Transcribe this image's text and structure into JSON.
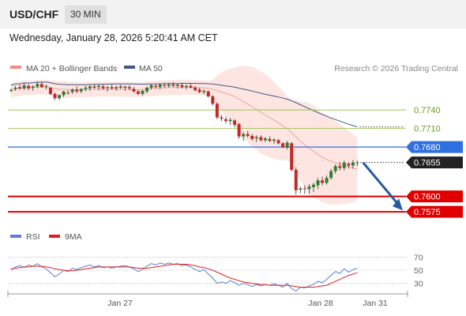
{
  "header": {
    "symbol": "USD/CHF",
    "timeframe": "30 MIN"
  },
  "datetime": "Wednesday, January 28, 2026 5:20:41 AM CET",
  "legend": {
    "bollinger": {
      "label": "MA 20 + Bollinger Bands",
      "color": "#f28b82"
    },
    "ma50": {
      "label": "MA 50",
      "color": "#3d5a8a"
    },
    "credit": "Research © 2026 Trading Central"
  },
  "rsi_legend": {
    "rsi": {
      "label": "RSI",
      "color": "#5b7fd6"
    },
    "ma9": {
      "label": "9MA",
      "color": "#e02020"
    }
  },
  "chart_data": {
    "type": "candlestick",
    "price_range": [
      0.7565,
      0.7785
    ],
    "levels": [
      {
        "label": "0.7740",
        "value": 0.774,
        "kind": "resistance",
        "color": "#8fbf3f",
        "label_style": "text"
      },
      {
        "label": "0.7710",
        "value": 0.771,
        "kind": "resistance",
        "color": "#8fbf3f",
        "label_style": "text"
      },
      {
        "label": "0.7680",
        "value": 0.768,
        "kind": "pivot",
        "color": "#2f6fde",
        "label_style": "box"
      },
      {
        "label": "0.7655",
        "value": 0.7655,
        "kind": "last-price",
        "color": "#222222",
        "label_style": "box"
      },
      {
        "label": "0.7600",
        "value": 0.76,
        "kind": "support",
        "color": "#e00000",
        "label_style": "box"
      },
      {
        "label": "0.7575",
        "value": 0.7575,
        "kind": "support",
        "color": "#e00000",
        "label_style": "box"
      }
    ],
    "x_ticks": [
      "Jan 27",
      "Jan 28",
      "Jan 31"
    ],
    "candles": [
      [
        0.7772,
        0.7775,
        0.7769,
        0.7772
      ],
      [
        0.7774,
        0.7779,
        0.7771,
        0.7776
      ],
      [
        0.7777,
        0.7781,
        0.7773,
        0.7775
      ],
      [
        0.7775,
        0.7783,
        0.7772,
        0.778
      ],
      [
        0.7779,
        0.7782,
        0.7772,
        0.7775
      ],
      [
        0.7776,
        0.778,
        0.7771,
        0.7778
      ],
      [
        0.7778,
        0.7786,
        0.7775,
        0.7782
      ],
      [
        0.7782,
        0.7786,
        0.7776,
        0.7777
      ],
      [
        0.7778,
        0.7781,
        0.7773,
        0.7779
      ],
      [
        0.7776,
        0.7777,
        0.7764,
        0.7766
      ],
      [
        0.7766,
        0.7768,
        0.7756,
        0.7759
      ],
      [
        0.7759,
        0.7765,
        0.7756,
        0.7764
      ],
      [
        0.7764,
        0.7771,
        0.7761,
        0.777
      ],
      [
        0.7768,
        0.7772,
        0.7765,
        0.7767
      ],
      [
        0.7769,
        0.7775,
        0.7766,
        0.7773
      ],
      [
        0.7773,
        0.7778,
        0.7767,
        0.777
      ],
      [
        0.777,
        0.7775,
        0.7767,
        0.7774
      ],
      [
        0.7774,
        0.7779,
        0.777,
        0.7776
      ],
      [
        0.7775,
        0.778,
        0.7771,
        0.7778
      ],
      [
        0.7778,
        0.7782,
        0.7774,
        0.7776
      ],
      [
        0.7777,
        0.7781,
        0.7772,
        0.7779
      ],
      [
        0.7778,
        0.7781,
        0.7773,
        0.7775
      ],
      [
        0.7776,
        0.7779,
        0.777,
        0.7777
      ],
      [
        0.7777,
        0.7781,
        0.7773,
        0.7775
      ],
      [
        0.7775,
        0.7779,
        0.7771,
        0.7777
      ],
      [
        0.7778,
        0.7781,
        0.7774,
        0.7776
      ],
      [
        0.7776,
        0.7779,
        0.7771,
        0.7778
      ],
      [
        0.7777,
        0.778,
        0.7772,
        0.7775
      ],
      [
        0.7774,
        0.7777,
        0.7768,
        0.777
      ],
      [
        0.777,
        0.7772,
        0.7764,
        0.7766
      ],
      [
        0.7766,
        0.7772,
        0.7763,
        0.7771
      ],
      [
        0.777,
        0.7778,
        0.7767,
        0.7776
      ],
      [
        0.7776,
        0.7782,
        0.7773,
        0.778
      ],
      [
        0.7779,
        0.7782,
        0.7775,
        0.7777
      ],
      [
        0.7777,
        0.7783,
        0.7774,
        0.7781
      ],
      [
        0.778,
        0.7784,
        0.7776,
        0.7779
      ],
      [
        0.7779,
        0.7784,
        0.7776,
        0.7781
      ],
      [
        0.7781,
        0.7785,
        0.7777,
        0.7779
      ],
      [
        0.7779,
        0.7783,
        0.7775,
        0.7781
      ],
      [
        0.778,
        0.7784,
        0.7775,
        0.7777
      ],
      [
        0.7777,
        0.7781,
        0.7773,
        0.7779
      ],
      [
        0.7779,
        0.7783,
        0.7775,
        0.7776
      ],
      [
        0.7776,
        0.7779,
        0.777,
        0.7772
      ],
      [
        0.7773,
        0.7776,
        0.7767,
        0.7769
      ],
      [
        0.7769,
        0.7773,
        0.7765,
        0.7771
      ],
      [
        0.777,
        0.7772,
        0.776,
        0.7762
      ],
      [
        0.7762,
        0.7764,
        0.7747,
        0.775
      ],
      [
        0.775,
        0.7752,
        0.7725,
        0.7728
      ],
      [
        0.7728,
        0.7732,
        0.7722,
        0.7726
      ],
      [
        0.7725,
        0.7729,
        0.7718,
        0.7722
      ],
      [
        0.7722,
        0.7727,
        0.7716,
        0.7724
      ],
      [
        0.7723,
        0.7725,
        0.7712,
        0.7716
      ],
      [
        0.7717,
        0.7719,
        0.7693,
        0.7697
      ],
      [
        0.7697,
        0.7704,
        0.769,
        0.7701
      ],
      [
        0.7701,
        0.7706,
        0.7695,
        0.7698
      ],
      [
        0.7698,
        0.7701,
        0.769,
        0.7693
      ],
      [
        0.7694,
        0.7699,
        0.7688,
        0.7696
      ],
      [
        0.7696,
        0.7699,
        0.7689,
        0.7691
      ],
      [
        0.7691,
        0.7696,
        0.7688,
        0.7694
      ],
      [
        0.7693,
        0.7697,
        0.7688,
        0.769
      ],
      [
        0.769,
        0.7694,
        0.7685,
        0.7692
      ],
      [
        0.7691,
        0.7693,
        0.7684,
        0.7686
      ],
      [
        0.7686,
        0.7688,
        0.7678,
        0.768
      ],
      [
        0.7679,
        0.769,
        0.7676,
        0.7687
      ],
      [
        0.7686,
        0.7688,
        0.764,
        0.7643
      ],
      [
        0.7643,
        0.7647,
        0.7603,
        0.761
      ],
      [
        0.7611,
        0.7616,
        0.7605,
        0.7613
      ],
      [
        0.7613,
        0.7618,
        0.7604,
        0.7612
      ],
      [
        0.7612,
        0.762,
        0.7604,
        0.7616
      ],
      [
        0.7615,
        0.7622,
        0.7607,
        0.7619
      ],
      [
        0.7618,
        0.763,
        0.7612,
        0.7626
      ],
      [
        0.7626,
        0.7632,
        0.7618,
        0.7622
      ],
      [
        0.7622,
        0.7634,
        0.7619,
        0.763
      ],
      [
        0.763,
        0.7645,
        0.7627,
        0.7641
      ],
      [
        0.7641,
        0.7652,
        0.7637,
        0.7649
      ],
      [
        0.7649,
        0.7656,
        0.7642,
        0.7646
      ],
      [
        0.7646,
        0.7658,
        0.7642,
        0.7655
      ],
      [
        0.7653,
        0.7656,
        0.7645,
        0.765
      ],
      [
        0.765,
        0.7659,
        0.7645,
        0.7655
      ],
      [
        0.7655,
        0.7658,
        0.7649,
        0.7655
      ]
    ],
    "rsi_scale": {
      "ticks": [
        70,
        50,
        30
      ],
      "range": [
        15,
        85
      ]
    },
    "rsi": [
      50,
      55,
      57,
      54,
      58,
      56,
      60,
      55,
      52,
      46,
      40,
      44,
      50,
      48,
      53,
      51,
      54,
      56,
      58,
      55,
      57,
      54,
      55,
      53,
      55,
      56,
      57,
      55,
      52,
      48,
      51,
      56,
      60,
      58,
      61,
      59,
      61,
      59,
      60,
      57,
      58,
      55,
      51,
      48,
      51,
      44,
      38,
      30,
      32,
      30,
      34,
      31,
      27,
      30,
      28,
      25,
      28,
      26,
      28,
      27,
      29,
      27,
      24,
      30,
      22,
      18,
      24,
      23,
      26,
      28,
      33,
      31,
      36,
      42,
      48,
      45,
      52,
      47,
      51,
      53
    ],
    "rsi_ma": [
      52,
      53,
      54,
      55,
      55,
      56,
      56,
      56,
      55,
      54,
      52,
      51,
      50,
      49,
      49,
      50,
      51,
      52,
      53,
      54,
      55,
      55,
      55,
      55,
      55,
      55,
      55,
      55,
      54,
      53,
      53,
      53,
      54,
      55,
      56,
      57,
      58,
      59,
      59,
      59,
      59,
      58,
      57,
      55,
      54,
      52,
      50,
      47,
      44,
      41,
      38,
      36,
      34,
      32,
      31,
      30,
      29,
      28,
      28,
      27,
      27,
      27,
      27,
      27,
      26,
      25,
      24,
      24,
      24,
      24,
      25,
      26,
      27,
      30,
      33,
      36,
      39,
      42,
      44,
      46
    ]
  }
}
